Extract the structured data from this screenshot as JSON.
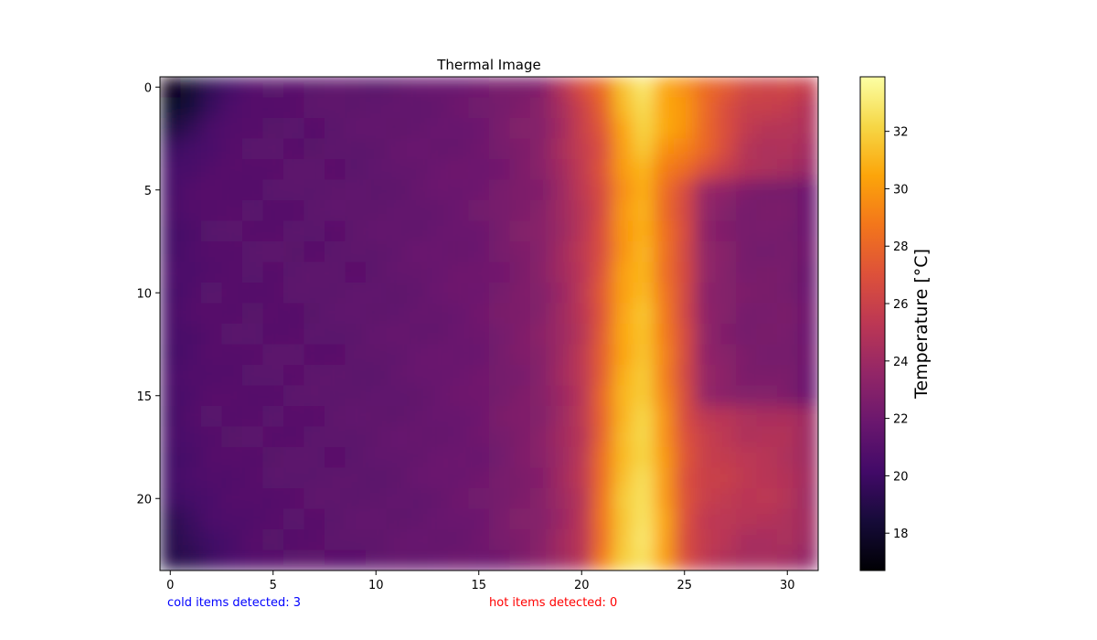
{
  "chart_data": {
    "type": "heatmap",
    "title": "Thermal Image",
    "xlabel": "",
    "ylabel": "",
    "colorbar_label": "Temperature [°C]",
    "colormap": "inferno",
    "grid": false,
    "rows": 24,
    "cols": 32,
    "xlim": [
      -0.5,
      31.5
    ],
    "ylim": [
      23.5,
      -0.5
    ],
    "x_ticks": [
      0,
      5,
      10,
      15,
      20,
      25,
      30
    ],
    "y_ticks": [
      0,
      5,
      10,
      15,
      20
    ],
    "color_range": [
      16.7,
      33.9
    ],
    "colorbar_ticks": [
      18,
      20,
      22,
      24,
      26,
      28,
      30,
      32
    ],
    "temperature_profile": {
      "columns": [
        0,
        2,
        5,
        10,
        15,
        18,
        19,
        20,
        21,
        22,
        23,
        24,
        25,
        26,
        28,
        30,
        31
      ],
      "mean_values": [
        20.4,
        21.0,
        21.1,
        21.4,
        22.0,
        23.0,
        24.0,
        25.2,
        27.5,
        30.5,
        31.5,
        29.0,
        26.5,
        25.0,
        24.0,
        24.0,
        23.5
      ]
    },
    "hot_spot": {
      "x": 23,
      "y": 20,
      "value": 33.9
    },
    "cold_spot": {
      "x": 0,
      "y": 0,
      "value": 16.7
    }
  },
  "status": {
    "cold_text": "cold items detected: 3",
    "cold_color": "#0000ff",
    "hot_text": "hot items detected: 0",
    "hot_color": "#ff0000"
  }
}
